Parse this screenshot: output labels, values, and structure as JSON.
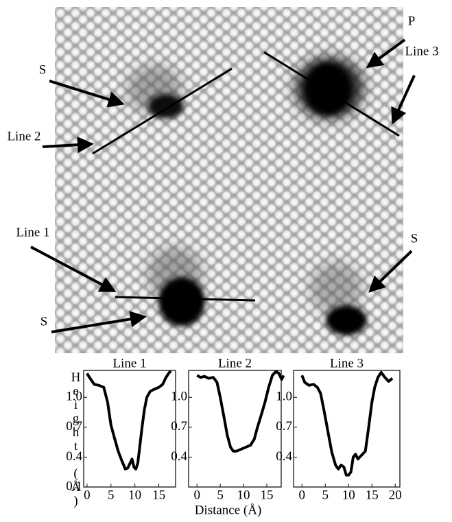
{
  "image": {
    "labels": [
      "S",
      "Line 2",
      "P",
      "Line 3",
      "Line 1",
      "S",
      "S"
    ]
  },
  "chart_data": [
    {
      "type": "line",
      "title": "Line 1",
      "y_label": "Height (Å)",
      "x": [
        0,
        0.5,
        1.5,
        2.5,
        3.5,
        4.3,
        5,
        5.8,
        6.5,
        7.3,
        8,
        8.5,
        9,
        9.4,
        9.8,
        10.2,
        10.6,
        11,
        11.5,
        12,
        12.5,
        13.2,
        14,
        15,
        15.8,
        16.5,
        17.2,
        17.6
      ],
      "values": [
        1.24,
        1.2,
        1.13,
        1.12,
        1.1,
        0.95,
        0.72,
        0.58,
        0.46,
        0.36,
        0.28,
        0.29,
        0.34,
        0.38,
        0.3,
        0.28,
        0.34,
        0.5,
        0.7,
        0.88,
        1.0,
        1.06,
        1.08,
        1.1,
        1.13,
        1.2,
        1.25,
        1.26
      ],
      "xlim": [
        -0.7,
        18.5
      ],
      "ylim": [
        0.1,
        1.27
      ],
      "xticks": [
        0,
        5,
        10,
        15
      ],
      "yticks": [
        0.1,
        0.4,
        0.7,
        {
          "value": 1,
          "label": "1.0"
        }
      ]
    },
    {
      "type": "line",
      "title": "Line 2",
      "x_label": "Distance (Å)",
      "x": [
        0,
        0.8,
        1.6,
        2.5,
        3.5,
        4.3,
        5,
        5.8,
        6.5,
        7.2,
        7.8,
        8.5,
        9.5,
        10.5,
        11.5,
        12.3,
        13,
        13.8,
        14.6,
        15.4,
        16.2,
        17,
        17.6,
        18.2,
        18.6
      ],
      "values": [
        1.22,
        1.2,
        1.21,
        1.19,
        1.2,
        1.15,
        1.0,
        0.8,
        0.62,
        0.5,
        0.46,
        0.46,
        0.48,
        0.5,
        0.52,
        0.58,
        0.7,
        0.82,
        0.95,
        1.1,
        1.22,
        1.26,
        1.24,
        1.18,
        1.22
      ],
      "xlim": [
        -1.8,
        18.1
      ],
      "ylim": [
        0.1,
        1.27
      ],
      "xticks": [
        0,
        5,
        10,
        15
      ],
      "yticks": [
        0.4,
        0.7,
        {
          "value": 1,
          "label": "1.0"
        }
      ]
    },
    {
      "type": "line",
      "title": "Line 3",
      "x": [
        0,
        0.6,
        1.5,
        2.5,
        3.3,
        4,
        4.8,
        5.6,
        6.4,
        7.2,
        7.8,
        8.4,
        9,
        9.5,
        10,
        10.5,
        11,
        11.5,
        12,
        12.8,
        13.6,
        14.3,
        15,
        15.6,
        16.3,
        17,
        17.8,
        18.6,
        19.4
      ],
      "values": [
        1.22,
        1.15,
        1.12,
        1.13,
        1.1,
        1.04,
        0.85,
        0.65,
        0.45,
        0.32,
        0.28,
        0.32,
        0.3,
        0.22,
        0.22,
        0.25,
        0.4,
        0.43,
        0.38,
        0.42,
        0.46,
        0.7,
        0.95,
        1.1,
        1.2,
        1.25,
        1.2,
        1.16,
        1.19
      ],
      "xlim": [
        -1.8,
        21
      ],
      "ylim": [
        0.1,
        1.27
      ],
      "xticks": [
        0,
        5,
        10,
        15,
        20
      ],
      "yticks": [
        0.4,
        0.7,
        {
          "value": 1,
          "label": "1.0"
        }
      ]
    }
  ]
}
